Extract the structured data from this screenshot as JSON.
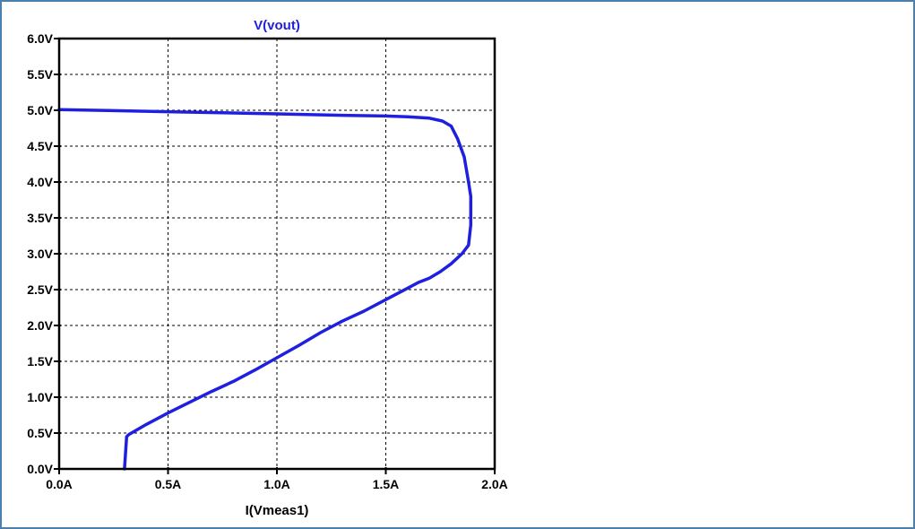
{
  "window": {
    "border_color": "#4a7fae",
    "background": "#ffffff"
  },
  "chart_data": {
    "type": "line",
    "title": "V(vout)",
    "title_color": "#1f1fe0",
    "xlabel": "I(Vmeas1)",
    "ylabel": "",
    "xlim": [
      0,
      2.0
    ],
    "ylim": [
      0,
      6.0
    ],
    "grid": true,
    "x_ticks": [
      0,
      0.5,
      1.0,
      1.5,
      2.0
    ],
    "x_tick_labels": [
      "0.0A",
      "0.5A",
      "1.0A",
      "1.5A",
      "2.0A"
    ],
    "y_ticks": [
      0,
      0.5,
      1.0,
      1.5,
      2.0,
      2.5,
      3.0,
      3.5,
      4.0,
      4.5,
      5.0,
      5.5,
      6.0
    ],
    "y_tick_labels": [
      "0.0V",
      "0.5V",
      "1.0V",
      "1.5V",
      "2.0V",
      "2.5V",
      "3.0V",
      "3.5V",
      "4.0V",
      "4.5V",
      "5.0V",
      "5.5V",
      "6.0V"
    ],
    "series": [
      {
        "color": "#1f1fe0",
        "x": [
          0.3,
          0.31,
          0.32,
          0.4,
          0.5,
          0.6,
          0.7,
          0.8,
          0.9,
          1.0,
          1.1,
          1.2,
          1.3,
          1.4,
          1.5,
          1.6,
          1.65,
          1.7,
          1.75,
          1.8,
          1.85,
          1.88,
          1.89,
          1.89,
          1.88,
          1.86,
          1.83,
          1.8,
          1.76,
          1.7,
          1.6,
          1.5,
          1.3,
          1.0,
          0.5,
          0.0
        ],
        "y": [
          0.0,
          0.45,
          0.48,
          0.62,
          0.78,
          0.93,
          1.08,
          1.22,
          1.38,
          1.55,
          1.72,
          1.9,
          2.06,
          2.2,
          2.36,
          2.52,
          2.6,
          2.66,
          2.75,
          2.86,
          3.0,
          3.12,
          3.4,
          3.8,
          4.0,
          4.35,
          4.6,
          4.78,
          4.85,
          4.89,
          4.91,
          4.92,
          4.93,
          4.95,
          4.98,
          5.01
        ]
      }
    ]
  }
}
